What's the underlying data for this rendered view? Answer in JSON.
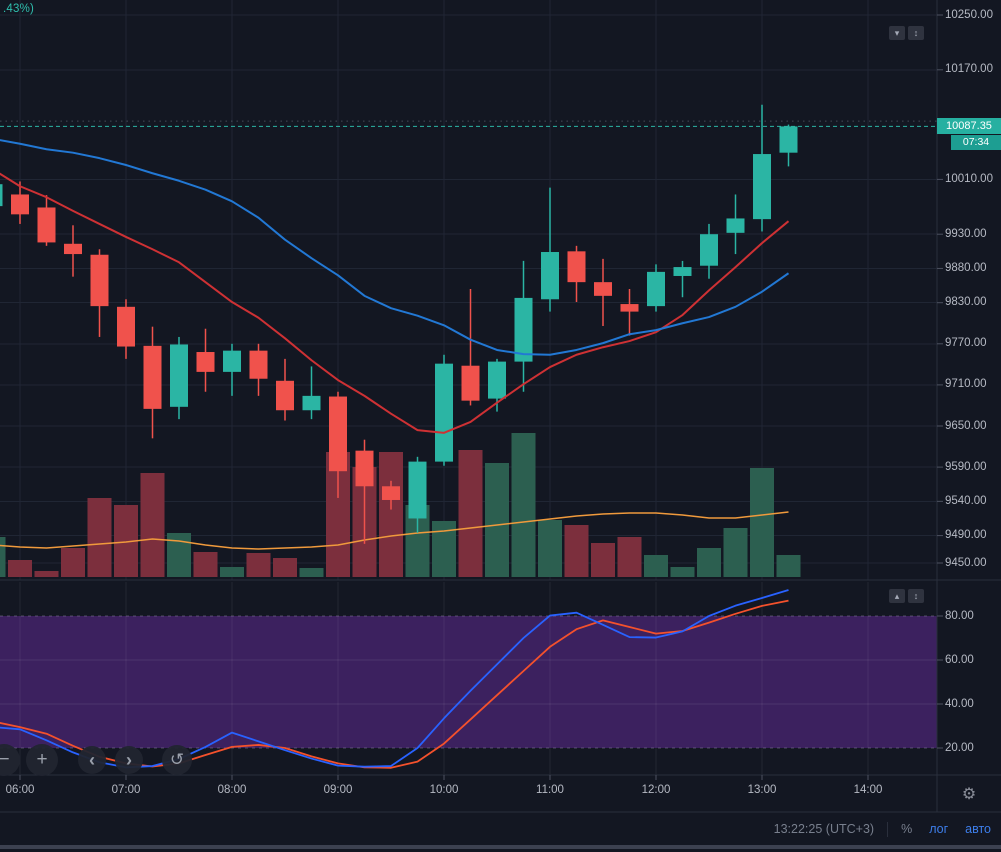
{
  "legend": {
    "change_text": ".43%)"
  },
  "icons": {
    "gear": "⚙"
  },
  "nav": {
    "zoom_out": "−",
    "zoom_in": "+",
    "pan_left": "‹",
    "pan_right": "›",
    "reset": "↺"
  },
  "pane_buttons": {
    "main_collapse": "▾",
    "osc_expand": "▴",
    "maximize": "↕"
  },
  "price_axis": {
    "last_price_text": "10087.35",
    "countdown": "07:34"
  },
  "status_bar": {
    "clock": "13:22:25 (UTC+3)",
    "percent": "%",
    "log": "лог",
    "auto": "авто"
  },
  "colors": {
    "background": "#131722",
    "grid": "#202634",
    "accent_teal": "#26B0A1",
    "accent_red": "#F0524C",
    "link_blue": "#3D7EEB",
    "axis_text": "#B6BAC4"
  },
  "chart_data": [
    {
      "type": "candlestick",
      "pane": "main",
      "interval_minutes": 15,
      "last_price": 10087.35,
      "dotted_line_price": 10095,
      "up_color": "#2BB5A4",
      "down_color": "#F0524C",
      "vol_up_color": "#2C5F50",
      "vol_down_color": "#7C2F3D",
      "price_axis_labels": [
        "10250.00",
        "10170.00",
        "10010.00",
        "9930.00",
        "9880.00",
        "9830.00",
        "9770.00",
        "9710.00",
        "9650.00",
        "9590.00",
        "9540.00",
        "9490.00",
        "9450.00"
      ],
      "time_axis_labels": [
        "06:00",
        "07:00",
        "08:00",
        "09:00",
        "10:00",
        "11:00",
        "12:00",
        "13:00",
        "14:00"
      ],
      "times": [
        "05:45",
        "06:00",
        "06:15",
        "06:30",
        "06:45",
        "07:00",
        "07:15",
        "07:30",
        "07:45",
        "08:00",
        "08:15",
        "08:30",
        "08:45",
        "09:00",
        "09:15",
        "09:30",
        "09:45",
        "10:00",
        "10:15",
        "10:30",
        "10:45",
        "11:00",
        "11:15",
        "11:30",
        "11:45",
        "12:00",
        "12:15",
        "12:30",
        "12:45",
        "13:00",
        "13:15"
      ],
      "ohlc": [
        [
          9971,
          10005,
          9962,
          10003
        ],
        [
          9988,
          10007,
          9945,
          9959
        ],
        [
          9969,
          9987,
          9913,
          9918
        ],
        [
          9916,
          9943,
          9868,
          9901
        ],
        [
          9900,
          9908,
          9780,
          9825
        ],
        [
          9824,
          9835,
          9748,
          9766
        ],
        [
          9767,
          9795,
          9632,
          9675
        ],
        [
          9678,
          9780,
          9660,
          9769
        ],
        [
          9758,
          9792,
          9700,
          9729
        ],
        [
          9729,
          9770,
          9694,
          9760
        ],
        [
          9760,
          9770,
          9694,
          9719
        ],
        [
          9716,
          9748,
          9658,
          9673
        ],
        [
          9673,
          9737,
          9660,
          9694
        ],
        [
          9693,
          9700,
          9545,
          9584
        ],
        [
          9614,
          9630,
          9478,
          9562
        ],
        [
          9562,
          9570,
          9528,
          9542
        ],
        [
          9515,
          9605,
          9494,
          9598
        ],
        [
          9598,
          9754,
          9592,
          9741
        ],
        [
          9738,
          9850,
          9680,
          9687
        ],
        [
          9690,
          9748,
          9671,
          9744
        ],
        [
          9744,
          9891,
          9700,
          9837
        ],
        [
          9835,
          9998,
          9817,
          9904
        ],
        [
          9905,
          9913,
          9831,
          9860
        ],
        [
          9860,
          9894,
          9796,
          9840
        ],
        [
          9828,
          9850,
          9782,
          9817
        ],
        [
          9825,
          9886,
          9817,
          9875
        ],
        [
          9869,
          9891,
          9838,
          9882
        ],
        [
          9884,
          9945,
          9865,
          9930
        ],
        [
          9932,
          9988,
          9901,
          9953
        ],
        [
          9952,
          10119,
          9934,
          10047
        ],
        [
          10049,
          10090,
          10029,
          10087.35
        ]
      ],
      "volume": [
        40,
        17,
        6,
        29,
        79,
        72,
        104,
        44,
        25,
        10,
        24,
        19,
        9,
        125,
        110,
        125,
        72,
        56,
        127,
        114,
        144,
        57,
        52,
        34,
        40,
        22,
        10,
        29,
        49,
        109,
        22
      ],
      "series": [
        {
          "name": "ma-red",
          "color": "#CE3134",
          "prices": [
            10024,
            10000,
            9984,
            9964,
            9945,
            9926,
            9908,
            9889,
            9860,
            9831,
            9808,
            9778,
            9746,
            9717,
            9694,
            9668,
            9644,
            9640,
            9656,
            9684,
            9711,
            9736,
            9754,
            9765,
            9774,
            9787,
            9812,
            9848,
            9882,
            9917,
            9949
          ]
        },
        {
          "name": "ma-blue",
          "color": "#2278D4",
          "prices": [
            10069,
            10062,
            10054,
            10049,
            10041,
            10031,
            10019,
            10008,
            9995,
            9978,
            9954,
            9922,
            9895,
            9870,
            9840,
            9822,
            9811,
            9797,
            9776,
            9761,
            9755,
            9754,
            9761,
            9771,
            9784,
            9790,
            9800,
            9809,
            9824,
            9846,
            9873
          ]
        },
        {
          "name": "volume-ma",
          "color": "#F09A3C",
          "values": [
            32,
            30,
            29,
            31,
            33,
            35,
            38,
            36,
            32,
            29,
            28,
            29,
            30,
            32,
            37,
            41,
            44,
            46,
            49,
            52,
            55,
            58,
            61,
            63,
            64,
            64,
            62,
            59,
            59,
            62,
            65
          ]
        }
      ]
    },
    {
      "type": "line",
      "pane": "oscillator",
      "name": "stochastic-oscillator",
      "band": [
        20,
        80
      ],
      "band_color": "#3C215F",
      "axis_labels": [
        "80.00",
        "60.00",
        "40.00",
        "20.00"
      ],
      "series": [
        {
          "name": "d-orange",
          "color": "#F4512C",
          "values": [
            32,
            29.5,
            26.5,
            21,
            16,
            13,
            11.6,
            13,
            16.8,
            20.5,
            21.4,
            20,
            16.2,
            13,
            11.2,
            11,
            13.8,
            22,
            33,
            44,
            55,
            66,
            74,
            78,
            75,
            72,
            73.2,
            77,
            81,
            84.6,
            87
          ]
        },
        {
          "name": "k-blue",
          "color": "#2962FF",
          "values": [
            29.5,
            28.5,
            23.5,
            18,
            13.5,
            11.2,
            11.8,
            15,
            20.5,
            27,
            23,
            19,
            15.2,
            12,
            11.5,
            11.8,
            20,
            33.5,
            46,
            58,
            70,
            80.2,
            81.5,
            76,
            70.4,
            70.2,
            73,
            80,
            84.7,
            88.2,
            91.8
          ]
        }
      ]
    }
  ]
}
